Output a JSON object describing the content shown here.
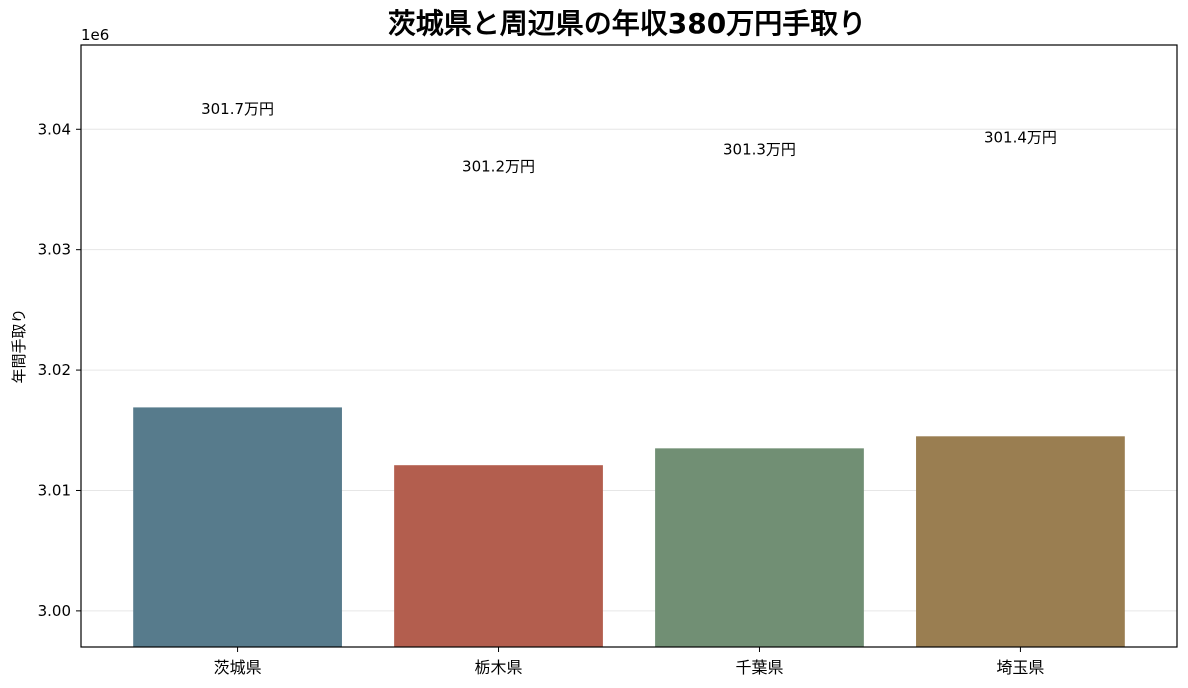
{
  "chart_data": {
    "type": "bar",
    "title": "茨城県と周辺県の年収380万円手取り",
    "xlabel": "",
    "ylabel": "年間手取り",
    "y_offset_label": "1e6",
    "categories": [
      "茨城県",
      "栃木県",
      "千葉県",
      "埼玉県"
    ],
    "values": [
      3016900,
      3012100,
      3013500,
      3014500
    ],
    "data_labels": [
      "301.7万円",
      "301.2万円",
      "301.3万円",
      "301.4万円"
    ],
    "data_label_heights": [
      3041700,
      3036900,
      3038300,
      3039300
    ],
    "colors": [
      "#577b8c",
      "#b35e4e",
      "#718f74",
      "#9a7e51"
    ],
    "ylim": [
      2997000,
      3047000
    ],
    "yticks": [
      3000000,
      3010000,
      3020000,
      3030000,
      3040000
    ],
    "ytick_labels": [
      "3.00",
      "3.01",
      "3.02",
      "3.03",
      "3.04"
    ],
    "grid": true
  }
}
